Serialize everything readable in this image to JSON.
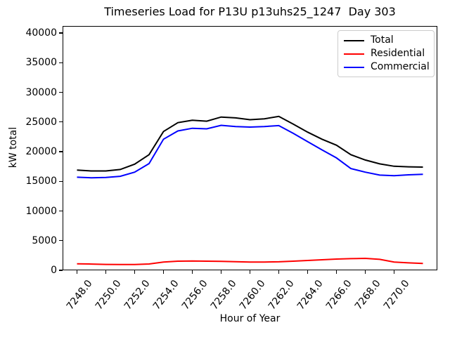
{
  "chart_data": {
    "type": "line",
    "title": "Timeseries Load for P13U p13uhs25_1247  Day 303",
    "xlabel": "Hour of Year",
    "ylabel": "kW total",
    "x": [
      7248,
      7249,
      7250,
      7251,
      7252,
      7253,
      7254,
      7255,
      7256,
      7257,
      7258,
      7259,
      7260,
      7261,
      7262,
      7263,
      7264,
      7265,
      7266,
      7267,
      7268,
      7269,
      7270,
      7271,
      7272
    ],
    "series": [
      {
        "name": "Total",
        "color": "#000000",
        "values": [
          16900,
          16750,
          16750,
          17000,
          17900,
          19500,
          23400,
          24900,
          25300,
          25150,
          25850,
          25700,
          25400,
          25550,
          25950,
          24650,
          23300,
          22100,
          21100,
          19500,
          18600,
          17950,
          17550,
          17450,
          17400
        ]
      },
      {
        "name": "Residential",
        "color": "#ff0000",
        "values": [
          1100,
          1050,
          1000,
          980,
          980,
          1070,
          1380,
          1540,
          1580,
          1540,
          1500,
          1460,
          1400,
          1400,
          1430,
          1540,
          1660,
          1780,
          1890,
          1970,
          2010,
          1850,
          1400,
          1250,
          1150
        ]
      },
      {
        "name": "Commercial",
        "color": "#0000ff",
        "values": [
          15700,
          15600,
          15650,
          15850,
          16550,
          18000,
          22100,
          23500,
          23950,
          23850,
          24450,
          24250,
          24150,
          24250,
          24400,
          23100,
          21700,
          20300,
          18950,
          17150,
          16550,
          16050,
          15950,
          16100,
          16200
        ]
      }
    ],
    "xtick_labels": [
      "7248.0",
      "7250.0",
      "7252.0",
      "7254.0",
      "7256.0",
      "7258.0",
      "7260.0",
      "7262.0",
      "7264.0",
      "7266.0",
      "7268.0",
      "7270.0"
    ],
    "yticks": [
      0,
      5000,
      10000,
      15000,
      20000,
      25000,
      30000,
      35000,
      40000
    ],
    "xlim": [
      7247,
      7273
    ],
    "ylim": [
      0,
      41200
    ],
    "grid": false,
    "legend_position": "upper right"
  }
}
